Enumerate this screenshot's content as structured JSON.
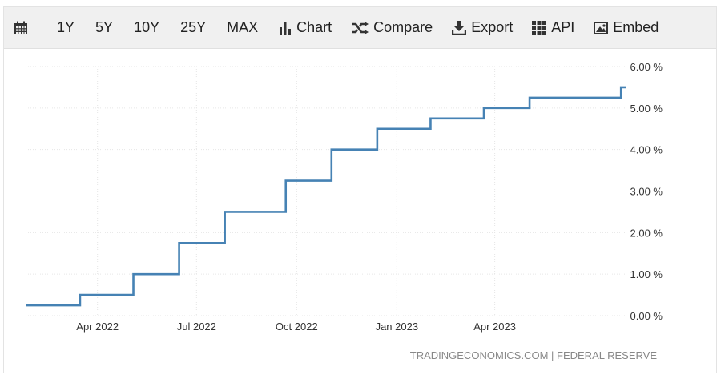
{
  "toolbar": {
    "ranges": [
      "1Y",
      "5Y",
      "10Y",
      "25Y",
      "MAX"
    ],
    "chart_label": "Chart",
    "compare_label": "Compare",
    "export_label": "Export",
    "api_label": "API",
    "embed_label": "Embed",
    "icons": [
      "calendar-icon",
      "bar-chart-icon",
      "shuffle-icon",
      "download-icon",
      "grid-icon",
      "image-icon"
    ]
  },
  "source": "TRADINGECONOMICS.COM  |  FEDERAL RESERVE",
  "chart_data": {
    "type": "line",
    "step": true,
    "title": "",
    "xlabel": "",
    "ylabel": "",
    "x_ticks": [
      "Apr 2022",
      "Jul 2022",
      "Oct 2022",
      "Jan 2023",
      "Apr 2023"
    ],
    "y_ticks": [
      "0.00 %",
      "1.00 %",
      "2.00 %",
      "3.00 %",
      "4.00 %",
      "5.00 %",
      "6.00 %"
    ],
    "ylim": [
      0,
      6
    ],
    "xlim": [
      "2022-01-25",
      "2023-07-31"
    ],
    "grid": true,
    "line_color": "#4682b4",
    "series": [
      {
        "x": [
          "2022-01-25",
          "2022-03-16",
          "2022-05-04",
          "2022-06-15",
          "2022-07-27",
          "2022-09-21",
          "2022-11-02",
          "2022-12-14",
          "2023-02-01",
          "2023-03-22",
          "2023-05-03",
          "2023-07-26",
          "2023-07-31"
        ],
        "values": [
          0.25,
          0.5,
          1.0,
          1.75,
          2.5,
          3.25,
          4.0,
          4.5,
          4.75,
          5.0,
          5.25,
          5.5,
          5.5
        ]
      }
    ]
  }
}
